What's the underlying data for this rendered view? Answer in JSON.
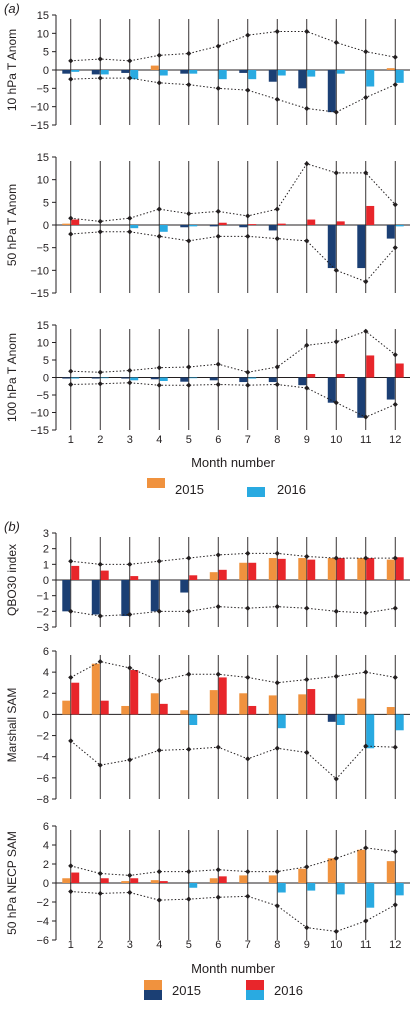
{
  "panel_labels": [
    "(a)",
    "(b)"
  ],
  "legend_a": [
    {
      "label": "2015",
      "swatches": [
        "#f0923e"
      ]
    },
    {
      "label": "2016",
      "swatches": [
        "#29aae1"
      ]
    }
  ],
  "legend_b": [
    {
      "label": "2015",
      "swatches": [
        "#f0923e",
        "#1b3f74"
      ]
    },
    {
      "label": "2016",
      "swatches": [
        "#e8262b",
        "#29aae1"
      ]
    }
  ],
  "colors": {
    "2015_positive": "#f0923e",
    "2015_negative": "#1b3f74",
    "2016_positive": "#e8262b",
    "2016_negative": "#29aae1"
  },
  "chart_data": [
    {
      "type": "bar",
      "panel": "a",
      "ylabel": "10 hPa T Anom",
      "xlabel": "",
      "ylim": [
        -15,
        15
      ],
      "yticks": [
        15,
        10,
        5,
        0,
        -5,
        -10,
        -15
      ],
      "categories": [
        "1",
        "2",
        "3",
        "4",
        "5",
        "6",
        "7",
        "8",
        "9",
        "10",
        "11",
        "12"
      ],
      "series": [
        {
          "name": "2015",
          "values": [
            -1,
            -1.2,
            -0.8,
            1.2,
            -1,
            0,
            -0.8,
            -3.2,
            -5,
            -11.5,
            0,
            0.5
          ]
        },
        {
          "name": "2016",
          "values": [
            -0.5,
            -1.2,
            -2.5,
            -1.5,
            -1,
            -2.5,
            -2.5,
            -1.5,
            -1.8,
            -1,
            -4.5,
            -3.5
          ]
        }
      ],
      "envelope_upper": [
        2.5,
        3,
        2.5,
        4,
        4.5,
        6.5,
        9.5,
        10.5,
        10.5,
        7.5,
        5,
        3.5
      ],
      "envelope_lower": [
        -2.5,
        -2.2,
        -2.2,
        -3.5,
        -4,
        -5,
        -5.5,
        -8,
        -10.5,
        -11.5,
        -7.5,
        -4
      ]
    },
    {
      "type": "bar",
      "panel": "a",
      "ylabel": "50 hPa T Anom",
      "xlabel": "",
      "ylim": [
        -15,
        15
      ],
      "yticks": [
        15,
        10,
        5,
        0,
        -5,
        -10,
        -15
      ],
      "categories": [
        "1",
        "2",
        "3",
        "4",
        "5",
        "6",
        "7",
        "8",
        "9",
        "10",
        "11",
        "12"
      ],
      "series": [
        {
          "name": "2015",
          "values": [
            0.3,
            0,
            0,
            0,
            -0.5,
            -0.3,
            -0.5,
            -1.2,
            0,
            -9.5,
            -9.5,
            -3
          ]
        },
        {
          "name": "2016",
          "values": [
            1.2,
            0,
            -0.7,
            -1.5,
            -0.3,
            0.5,
            0.2,
            0.3,
            1.2,
            0.8,
            4.2,
            -0.3
          ]
        }
      ],
      "envelope_upper": [
        1.5,
        0.8,
        1.5,
        3.5,
        2.5,
        3,
        2,
        3.5,
        13.5,
        11.5,
        11.5,
        4.5
      ],
      "envelope_lower": [
        -2,
        -1.5,
        -1.5,
        -2.5,
        -3.5,
        -2.5,
        -2.5,
        -3,
        -3.5,
        -10,
        -12.5,
        -5
      ]
    },
    {
      "type": "bar",
      "panel": "a",
      "ylabel": "100 hPa T Anom",
      "xlabel": "Month number",
      "ylim": [
        -15,
        15
      ],
      "yticks": [
        15,
        10,
        5,
        0,
        -5,
        -10,
        -15
      ],
      "categories": [
        "1",
        "2",
        "3",
        "4",
        "5",
        "6",
        "7",
        "8",
        "9",
        "10",
        "11",
        "12"
      ],
      "series": [
        {
          "name": "2015",
          "values": [
            -0.3,
            -0.3,
            -0.3,
            -0.5,
            -1.2,
            -0.8,
            -1.3,
            -1.3,
            -2.2,
            -7.2,
            -11.5,
            -6.3
          ]
        },
        {
          "name": "2016",
          "values": [
            -0.3,
            -0.2,
            -0.8,
            -1,
            -0.2,
            0,
            -0.3,
            0,
            1,
            1,
            6.3,
            4
          ]
        }
      ],
      "envelope_upper": [
        1.8,
        1.5,
        2,
        2.8,
        3,
        3.8,
        1.5,
        3,
        9.2,
        10.2,
        13.2,
        6.5
      ],
      "envelope_lower": [
        -2,
        -1.8,
        -1.5,
        -2.2,
        -2.2,
        -2,
        -2.2,
        -2,
        -3,
        -7.2,
        -11.3,
        -7.7
      ]
    },
    {
      "type": "bar",
      "panel": "b",
      "ylabel": "QBO30 index",
      "xlabel": "",
      "ylim": [
        -3,
        3
      ],
      "yticks": [
        3,
        2,
        1,
        0,
        -1,
        -2,
        -3
      ],
      "categories": [
        "1",
        "2",
        "3",
        "4",
        "5",
        "6",
        "7",
        "8",
        "9",
        "10",
        "11",
        "12"
      ],
      "series": [
        {
          "name": "2015",
          "values": [
            -2,
            -2.2,
            -2.3,
            -2,
            -0.8,
            0.5,
            1.1,
            1.4,
            1.4,
            1.4,
            1.4,
            1.3
          ]
        },
        {
          "name": "2016",
          "values": [
            0.9,
            0.6,
            0.25,
            0,
            0.3,
            0.65,
            1.1,
            1.35,
            1.3,
            1.4,
            1.4,
            1.45
          ]
        }
      ],
      "envelope_upper": [
        1.2,
        1,
        1,
        1.2,
        1.4,
        1.6,
        1.7,
        1.7,
        1.5,
        1.4,
        1.4,
        1.4
      ],
      "envelope_lower": [
        -2,
        -2.3,
        -2.2,
        -2,
        -2,
        -1.7,
        -1.8,
        -1.7,
        -1.8,
        -2,
        -2.1,
        -1.8
      ]
    },
    {
      "type": "bar",
      "panel": "b",
      "ylabel": "Marshall SAM",
      "xlabel": "",
      "ylim": [
        -8,
        6
      ],
      "yticks": [
        6,
        4,
        2,
        0,
        -2,
        -4,
        -6,
        -8
      ],
      "categories": [
        "1",
        "2",
        "3",
        "4",
        "5",
        "6",
        "7",
        "8",
        "9",
        "10",
        "11",
        "12"
      ],
      "series": [
        {
          "name": "2015",
          "values": [
            1.3,
            4.8,
            0.8,
            2,
            0.4,
            2.3,
            2,
            1.8,
            1.9,
            -0.7,
            1.5,
            0.7
          ]
        },
        {
          "name": "2016",
          "values": [
            3,
            1.3,
            4.2,
            1,
            -1,
            3.5,
            0.8,
            -1.3,
            2.4,
            -1,
            -3.2,
            -1.5
          ]
        }
      ],
      "envelope_upper": [
        3.5,
        5,
        4.4,
        3.2,
        3.8,
        3.8,
        3.5,
        3,
        3.3,
        3.6,
        4,
        3.5
      ],
      "envelope_lower": [
        -2.5,
        -4.8,
        -4.3,
        -3.4,
        -3.3,
        -3.1,
        -4.2,
        -3.2,
        -3.6,
        -6.1,
        -3,
        -3.1
      ]
    },
    {
      "type": "bar",
      "panel": "b",
      "ylabel": "50 hPa NECP SAM",
      "xlabel": "Month number",
      "ylim": [
        -6,
        6
      ],
      "yticks": [
        6,
        4,
        2,
        0,
        -2,
        -4,
        -6
      ],
      "categories": [
        "1",
        "2",
        "3",
        "4",
        "5",
        "6",
        "7",
        "8",
        "9",
        "10",
        "11",
        "12"
      ],
      "series": [
        {
          "name": "2015",
          "values": [
            0.5,
            0,
            0.2,
            0.3,
            0,
            0.5,
            0.8,
            0.8,
            1.5,
            2.6,
            3.5,
            2.3
          ]
        },
        {
          "name": "2016",
          "values": [
            1.1,
            0.5,
            0.5,
            0.2,
            -0.5,
            0.7,
            0,
            -1,
            -0.8,
            -1.2,
            -2.6,
            -1.3
          ]
        }
      ],
      "envelope_upper": [
        1.8,
        1,
        0.8,
        1.2,
        1.2,
        1.4,
        1.2,
        1.2,
        1.7,
        2.6,
        3.7,
        3.3
      ],
      "envelope_lower": [
        -0.9,
        -1.1,
        -1,
        -1.8,
        -1.7,
        -1.5,
        -1.4,
        -2.4,
        -4.7,
        -5.1,
        -4,
        -2.3
      ]
    }
  ]
}
